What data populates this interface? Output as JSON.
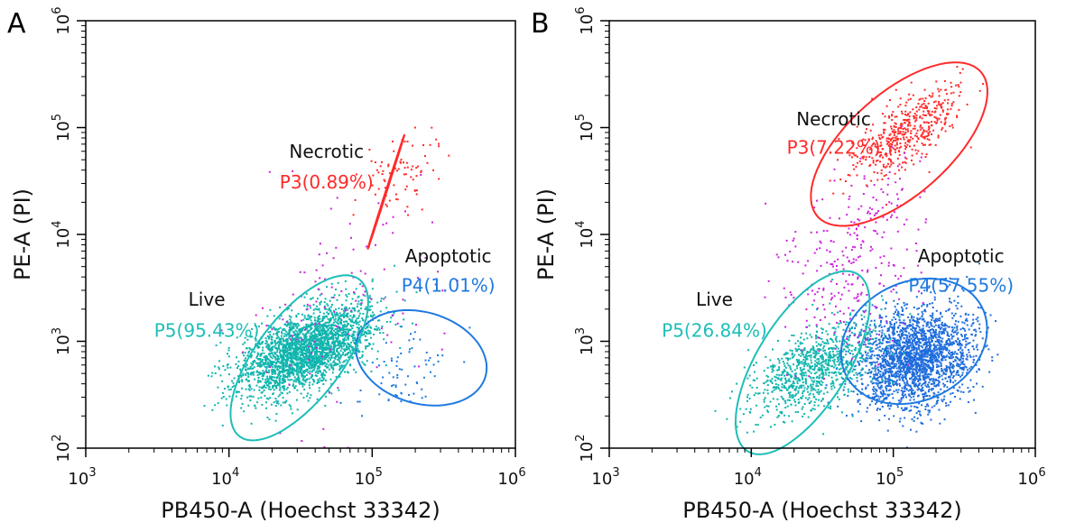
{
  "chart_data": [
    {
      "type": "scatter",
      "panel_label": "A",
      "xlabel": "PB450-A (Hoechst 33342)",
      "ylabel": "PE-A (PI)",
      "x_scale": "log",
      "y_scale": "log",
      "xlim": [
        1000,
        1000000
      ],
      "ylim": [
        100,
        1000000
      ],
      "x_ticks": [
        {
          "base": "10",
          "exp": "3"
        },
        {
          "base": "10",
          "exp": "4"
        },
        {
          "base": "10",
          "exp": "5"
        },
        {
          "base": "10",
          "exp": "6"
        }
      ],
      "y_ticks": [
        {
          "base": "10",
          "exp": "2"
        },
        {
          "base": "10",
          "exp": "3"
        },
        {
          "base": "10",
          "exp": "4"
        },
        {
          "base": "10",
          "exp": "5"
        },
        {
          "base": "10",
          "exp": "6"
        }
      ],
      "grid": false,
      "gates": [
        {
          "id": "P3",
          "name": "Necrotic",
          "label": "P3(0.89%)",
          "percent": 0.89,
          "color": "#ff2a2a",
          "center": [
            125000,
            25000
          ],
          "ell_u": [
            155000,
            63000
          ],
          "ell_v": [
            102000,
            11000
          ],
          "name_pos": [
            48000,
            52000
          ],
          "label_pos": [
            48000,
            27000
          ]
        },
        {
          "id": "P4",
          "name": "Apoptotic",
          "label": "P4(1.01%)",
          "percent": 1.01,
          "color": "#1f7ae0",
          "center": [
            220000,
            700
          ],
          "ell_u": [
            520000,
            1050
          ],
          "ell_v": [
            120000,
            1800
          ],
          "name_pos": [
            340000,
            5500
          ],
          "label_pos": [
            340000,
            2900
          ]
        },
        {
          "id": "P5",
          "name": "Live",
          "label": "P5(95.43%)",
          "percent": 95.43,
          "color": "#1ebeb8",
          "center": [
            31000,
            700
          ],
          "ell_u": [
            92000,
            2900
          ],
          "ell_v": [
            38000,
            240
          ],
          "name_pos": [
            7000,
            2150
          ],
          "label_pos": [
            7000,
            1100
          ]
        }
      ],
      "events": [
        {
          "gate": "P5",
          "count": 2600,
          "color": "#10b5ad",
          "mean": [
            34000,
            850
          ],
          "sd": [
            0.23,
            0.21
          ],
          "rho": 0.55
        },
        {
          "gate": "P4",
          "count": 70,
          "color": "#1f7ae0",
          "mean": [
            180000,
            550
          ],
          "sd": [
            0.16,
            0.18
          ],
          "rho": 0.35
        },
        {
          "gate": "P3",
          "count": 80,
          "color": "#ff2a2a",
          "mean": [
            150000,
            38000
          ],
          "sd": [
            0.14,
            0.2
          ],
          "rho": 0.4
        },
        {
          "gate": "none",
          "count": 120,
          "color": "#cc22dd",
          "mean": [
            60000,
            2500
          ],
          "sd": [
            0.35,
            0.5
          ],
          "rho": 0.3
        }
      ]
    },
    {
      "type": "scatter",
      "panel_label": "B",
      "xlabel": "PB450-A (Hoechst 33342)",
      "ylabel": "PE-A (PI)",
      "x_scale": "log",
      "y_scale": "log",
      "xlim": [
        1000,
        1000000
      ],
      "ylim": [
        100,
        1000000
      ],
      "x_ticks": [
        {
          "base": "10",
          "exp": "3"
        },
        {
          "base": "10",
          "exp": "4"
        },
        {
          "base": "10",
          "exp": "5"
        },
        {
          "base": "10",
          "exp": "6"
        }
      ],
      "y_ticks": [
        {
          "base": "10",
          "exp": "2"
        },
        {
          "base": "10",
          "exp": "3"
        },
        {
          "base": "10",
          "exp": "4"
        },
        {
          "base": "10",
          "exp": "5"
        },
        {
          "base": "10",
          "exp": "6"
        }
      ],
      "grid": false,
      "gates": [
        {
          "id": "P3",
          "name": "Necrotic",
          "label": "P3(7.22%)",
          "percent": 7.22,
          "color": "#ff2a2a",
          "center": [
            110000,
            70000
          ],
          "ell_u": [
            430000,
            310000
          ],
          "ell_v": [
            71000,
            180000
          ],
          "name_pos": [
            38000,
            105000
          ],
          "label_pos": [
            38000,
            57000
          ]
        },
        {
          "id": "P4",
          "name": "Apoptotic",
          "label": "P4(57.55%)",
          "percent": 57.55,
          "color": "#1f7ae0",
          "center": [
            140000,
            1000
          ],
          "ell_u": [
            420000,
            2100
          ],
          "ell_v": [
            90000,
            3100
          ],
          "name_pos": [
            300000,
            5500
          ],
          "label_pos": [
            300000,
            2900
          ]
        },
        {
          "id": "P5",
          "name": "Live",
          "label": "P5(26.84%)",
          "percent": 26.84,
          "color": "#1ebeb8",
          "center": [
            23000,
            630
          ],
          "ell_u": [
            67000,
            2900
          ],
          "ell_v": [
            28000,
            180
          ],
          "name_pos": [
            5500,
            2150
          ],
          "label_pos": [
            5500,
            1100
          ]
        }
      ],
      "events": [
        {
          "gate": "P4",
          "count": 2200,
          "color": "#1f6ddc",
          "mean": [
            140000,
            700
          ],
          "sd": [
            0.2,
            0.23
          ],
          "rho": 0.2
        },
        {
          "gate": "P5",
          "count": 900,
          "color": "#10b5ad",
          "mean": [
            27000,
            580
          ],
          "sd": [
            0.22,
            0.22
          ],
          "rho": 0.55
        },
        {
          "gate": "P3",
          "count": 480,
          "color": "#ff2a2a",
          "mean": [
            120000,
            90000
          ],
          "sd": [
            0.2,
            0.22
          ],
          "rho": 0.7
        },
        {
          "gate": "none",
          "count": 300,
          "color": "#cc22dd",
          "mean": [
            55000,
            6000
          ],
          "sd": [
            0.25,
            0.45
          ],
          "rho": 0.3
        }
      ]
    }
  ]
}
